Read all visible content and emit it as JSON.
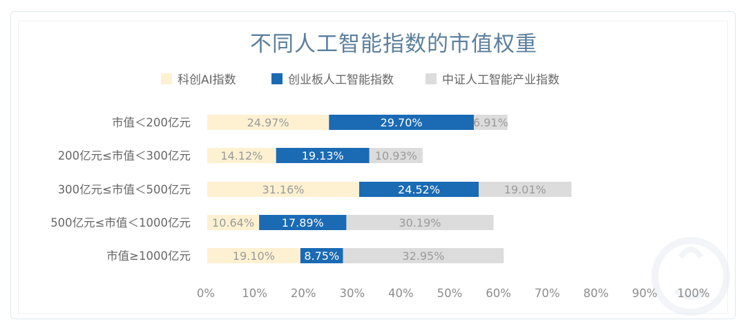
{
  "chart_data": {
    "type": "bar",
    "orientation": "horizontal",
    "stacked": true,
    "title": "不同人工智能指数的市值权重",
    "categories": [
      "市值＜200亿元",
      "200亿元≤市值＜300亿元",
      "300亿元≤市值＜500亿元",
      "500亿元≤市值＜1000亿元",
      "市值≥1000亿元"
    ],
    "series": [
      {
        "name": "科创AI指数",
        "color": "#fdf1d2",
        "label_color": "#9a9a9a",
        "values": [
          24.97,
          14.12,
          31.16,
          10.64,
          19.1
        ],
        "labels": [
          "24.97%",
          "14.12%",
          "31.16%",
          "10.64%",
          "19.10%"
        ]
      },
      {
        "name": "创业板人工智能指数",
        "color": "#1a6ab4",
        "label_color": "#ffffff",
        "values": [
          29.7,
          19.13,
          24.52,
          17.89,
          8.75
        ],
        "labels": [
          "29.70%",
          "19.13%",
          "24.52%",
          "17.89%",
          "8.75%"
        ]
      },
      {
        "name": "中证人工智能产业指数",
        "color": "#dcdcdc",
        "label_color": "#9a9a9a",
        "values": [
          6.91,
          10.93,
          19.01,
          30.19,
          32.95
        ],
        "labels": [
          "6.91%",
          "10.93%",
          "19.01%",
          "30.19%",
          "32.95%"
        ]
      }
    ],
    "xlim": [
      0,
      100
    ],
    "x_ticks": [
      "0%",
      "10%",
      "20%",
      "30%",
      "40%",
      "50%",
      "60%",
      "70%",
      "80%",
      "90%",
      "100%"
    ],
    "legend_position": "top-center",
    "grid": false
  }
}
